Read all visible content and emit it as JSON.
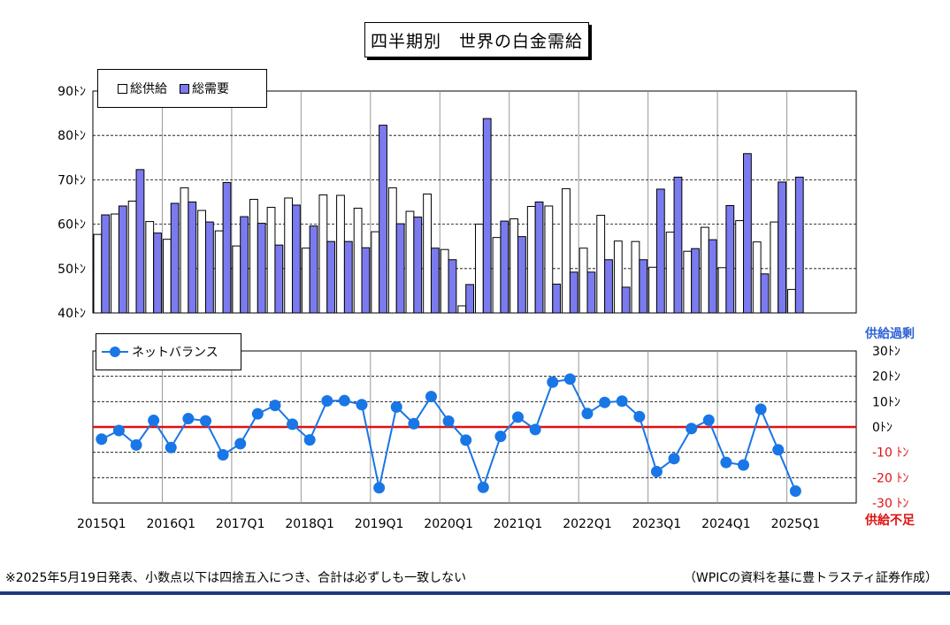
{
  "title": "四半期別　世界の白金需給",
  "colors": {
    "supply_fill": "#ffffff",
    "demand_fill": "#7b7bef",
    "net_line": "#1976e6",
    "zero_line": "#e01010",
    "surplus_text": "#2f63d6",
    "deficit_text": "#e01010",
    "bottom_rule": "#1f3a78"
  },
  "labels": {
    "surplus": "供給過剰",
    "deficit": "供給不足"
  },
  "notes": {
    "left": "※2025年5月19日発表、小数点以下は四捨五入につき、合計は必ずしも一致しない",
    "right": "（WPICの資料を基に豊トラスティ証券作成）"
  },
  "chart_data": [
    {
      "type": "bar",
      "legend_placement": "top-left",
      "ylim": [
        40,
        90
      ],
      "grid": true,
      "y_tick_labels": [
        "40ﾄﾝ",
        "50ﾄﾝ",
        "60ﾄﾝ",
        "70ﾄﾝ",
        "80ﾄﾝ",
        "90ﾄﾝ"
      ],
      "categories": [
        "2015Q1",
        "2015Q2",
        "2015Q3",
        "2015Q4",
        "2016Q1",
        "2016Q2",
        "2016Q3",
        "2016Q4",
        "2017Q1",
        "2017Q2",
        "2017Q3",
        "2017Q4",
        "2018Q1",
        "2018Q2",
        "2018Q3",
        "2018Q4",
        "2019Q1",
        "2019Q2",
        "2019Q3",
        "2019Q4",
        "2020Q1",
        "2020Q2",
        "2020Q3",
        "2020Q4",
        "2021Q1",
        "2021Q2",
        "2021Q3",
        "2021Q4",
        "2022Q1",
        "2022Q2",
        "2022Q3",
        "2022Q4",
        "2023Q1",
        "2023Q2",
        "2023Q3",
        "2023Q4",
        "2024Q1",
        "2024Q2",
        "2024Q3",
        "2024Q4",
        "2025Q1"
      ],
      "series": [
        {
          "name": "総供給",
          "values": [
            57.7,
            62.3,
            65.2,
            60.6,
            56.6,
            68.2,
            63.1,
            58.5,
            55.1,
            65.6,
            63.8,
            65.9,
            54.6,
            66.6,
            66.5,
            63.6,
            58.3,
            68.2,
            62.9,
            66.8,
            54.3,
            41.6,
            60.0,
            57.0,
            61.2,
            64.0,
            64.1,
            68.0,
            54.6,
            62.0,
            56.2,
            56.1,
            50.3,
            58.2,
            53.9,
            59.3,
            50.2,
            60.8,
            56.0,
            60.5,
            45.3
          ]
        },
        {
          "name": "総需要",
          "values": [
            62.1,
            64.1,
            72.3,
            58.0,
            64.7,
            65.0,
            60.5,
            69.4,
            61.7,
            60.2,
            55.3,
            64.3,
            59.6,
            56.1,
            56.1,
            54.7,
            82.3,
            60.1,
            61.6,
            54.6,
            52.0,
            46.4,
            83.8,
            60.7,
            57.2,
            65.0,
            46.5,
            49.2,
            49.2,
            52.0,
            45.8,
            52.0,
            67.9,
            70.6,
            54.5,
            56.5,
            64.2,
            75.9,
            48.8,
            69.5,
            70.6
          ]
        }
      ],
      "legend": [
        "総供給",
        "総需要"
      ]
    },
    {
      "type": "line",
      "legend_placement": "top-left",
      "ylim": [
        -30,
        30
      ],
      "grid": true,
      "y_tick_labels": [
        "30ﾄﾝ",
        "20ﾄﾝ",
        "10ﾄﾝ",
        "0ﾄﾝ",
        "-10 ﾄﾝ",
        "-20 ﾄﾝ",
        "-30 ﾄﾝ"
      ],
      "x_tick_labels": [
        "2015Q1",
        "2016Q1",
        "2017Q1",
        "2018Q1",
        "2019Q1",
        "2020Q1",
        "2021Q1",
        "2022Q1",
        "2023Q1",
        "2024Q1",
        "2025Q1"
      ],
      "series": [
        {
          "name": "ネットバランス",
          "values": [
            -4.8,
            -1.4,
            -7.1,
            2.6,
            -8.1,
            3.3,
            2.4,
            -11.0,
            -6.6,
            5.2,
            8.5,
            1.1,
            -5.1,
            10.3,
            10.4,
            8.8,
            -24.0,
            7.9,
            1.3,
            12.0,
            2.3,
            -5.2,
            -23.8,
            -3.7,
            3.9,
            -1.0,
            17.7,
            18.9,
            5.3,
            9.7,
            10.2,
            4.1,
            -17.6,
            -12.5,
            -0.6,
            2.7,
            -14.0,
            -15.0,
            7.0,
            -9.0,
            -25.3
          ]
        }
      ],
      "legend": [
        "ネットバランス"
      ]
    }
  ]
}
